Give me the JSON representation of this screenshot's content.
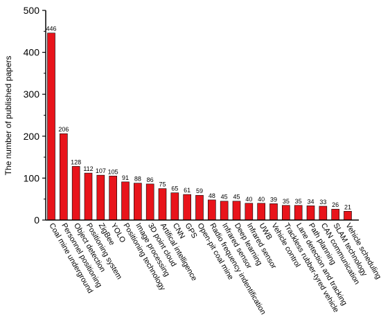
{
  "chart_data": {
    "type": "bar",
    "title": "",
    "xlabel": "",
    "ylabel": "The number of published papers",
    "ylim": [
      0,
      500
    ],
    "yticks": [
      0,
      100,
      200,
      300,
      400,
      500
    ],
    "grid": false,
    "bar_color": "#e8141b",
    "bar_edge_color": "#000000",
    "categories": [
      "Coal mine underground",
      "Personnel positioning",
      "Object detection",
      "Positioning system",
      "ZigBee",
      "YOLO",
      "Positioning technology",
      "Image processing",
      "3D point cloud",
      "Artifical intelligence",
      "CNN",
      "GPS",
      "Open-pit coal mine",
      "Radio frequency indentification",
      "Infrared sensor",
      "Deep learning",
      "Infrared sensor",
      "UWB",
      "Vehicle control",
      "Trackless rubber-tyred vehicle",
      "Lane detection and tracking",
      "Path planning",
      "CAN communication",
      "SLAM technology",
      "Vehicle scheduling"
    ],
    "values": [
      446,
      206,
      128,
      112,
      107,
      105,
      91,
      88,
      86,
      75,
      65,
      61,
      59,
      48,
      45,
      45,
      40,
      40,
      39,
      35,
      35,
      34,
      33,
      26,
      21
    ]
  }
}
